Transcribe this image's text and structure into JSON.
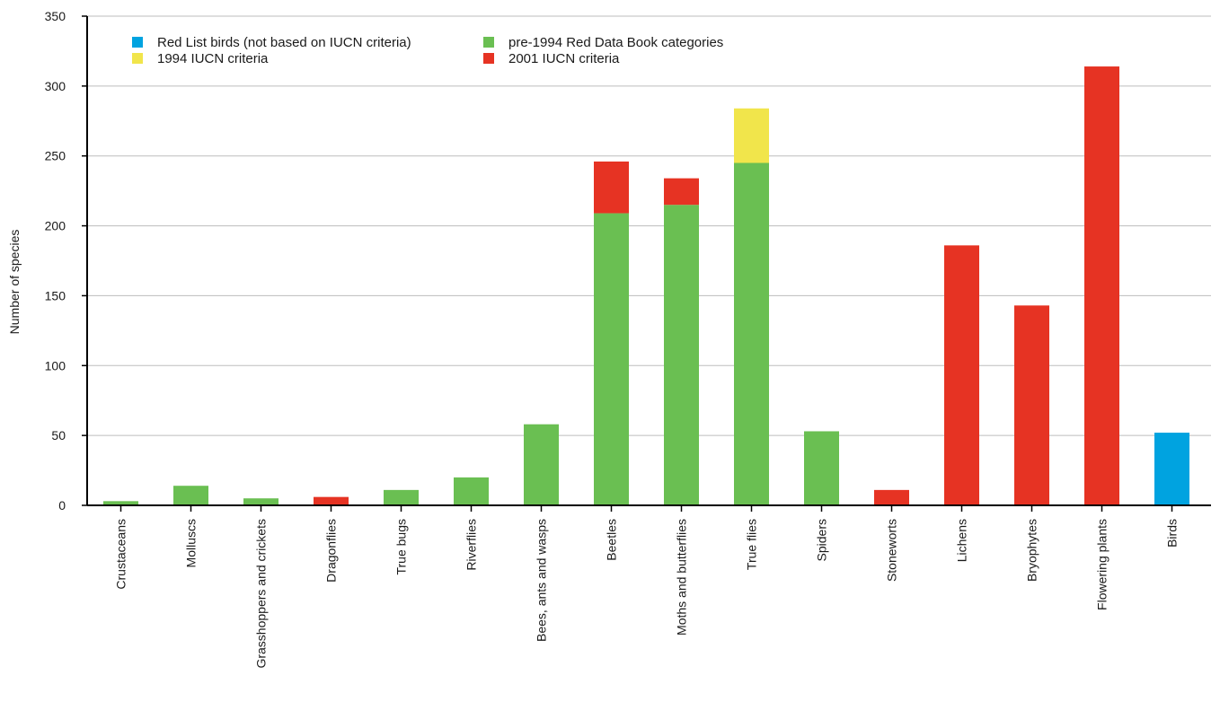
{
  "chart_data": {
    "type": "bar",
    "stacked": true,
    "title": "",
    "xlabel": "",
    "ylabel": "Number of species",
    "ylim": [
      0,
      350
    ],
    "yticks": [
      0,
      50,
      100,
      150,
      200,
      250,
      300,
      350
    ],
    "grid": true,
    "legend_position": "top-left",
    "categories": [
      "Crustaceans",
      "Molluscs",
      "Grasshoppers and crickets",
      "Dragonflies",
      "True bugs",
      "Riverflies",
      "Bees, ants and wasps",
      "Beetles",
      "Moths and butterflies",
      "True flies",
      "Spiders",
      "Stoneworts",
      "Lichens",
      "Bryophytes",
      "Flowering plants",
      "Birds"
    ],
    "series": [
      {
        "name": "Red List birds (not based on IUCN criteria)",
        "color": "#00a3e0",
        "values": [
          0,
          0,
          0,
          0,
          0,
          0,
          0,
          0,
          0,
          0,
          0,
          0,
          0,
          0,
          0,
          52
        ]
      },
      {
        "name": "pre-1994 Red Data Book categories",
        "color": "#6abf52",
        "values": [
          3,
          14,
          5,
          0,
          11,
          20,
          58,
          209,
          215,
          245,
          53,
          0,
          0,
          0,
          0,
          0
        ]
      },
      {
        "name": "1994 IUCN criteria",
        "color": "#f1e54b",
        "values": [
          0,
          0,
          0,
          0,
          0,
          0,
          0,
          0,
          0,
          39,
          0,
          0,
          0,
          0,
          0,
          0
        ]
      },
      {
        "name": "2001 IUCN criteria",
        "color": "#e63323",
        "values": [
          0,
          0,
          0,
          6,
          0,
          0,
          0,
          37,
          19,
          0,
          0,
          11,
          186,
          143,
          314,
          0
        ]
      }
    ]
  }
}
